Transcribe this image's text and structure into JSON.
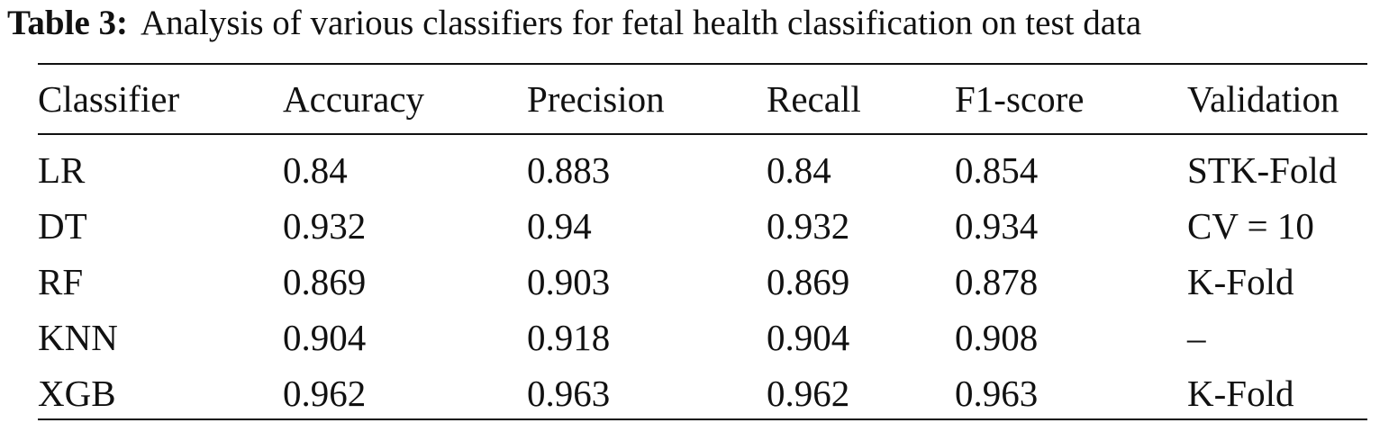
{
  "caption": {
    "label": "Table 3:",
    "text": "Analysis of various classifiers for fetal health classification on test data"
  },
  "table": {
    "headers": [
      "Classifier",
      "Accuracy",
      "Precision",
      "Recall",
      "F1-score",
      "Validation"
    ],
    "rows": [
      [
        "LR",
        "0.84",
        "0.883",
        "0.84",
        "0.854",
        "STK-Fold"
      ],
      [
        "DT",
        "0.932",
        "0.94",
        "0.932",
        "0.934",
        "CV = 10"
      ],
      [
        "RF",
        "0.869",
        "0.903",
        "0.869",
        "0.878",
        "K-Fold"
      ],
      [
        "KNN",
        "0.904",
        "0.918",
        "0.904",
        "0.908",
        "–"
      ],
      [
        "XGB",
        "0.962",
        "0.963",
        "0.962",
        "0.963",
        "K-Fold"
      ]
    ]
  }
}
